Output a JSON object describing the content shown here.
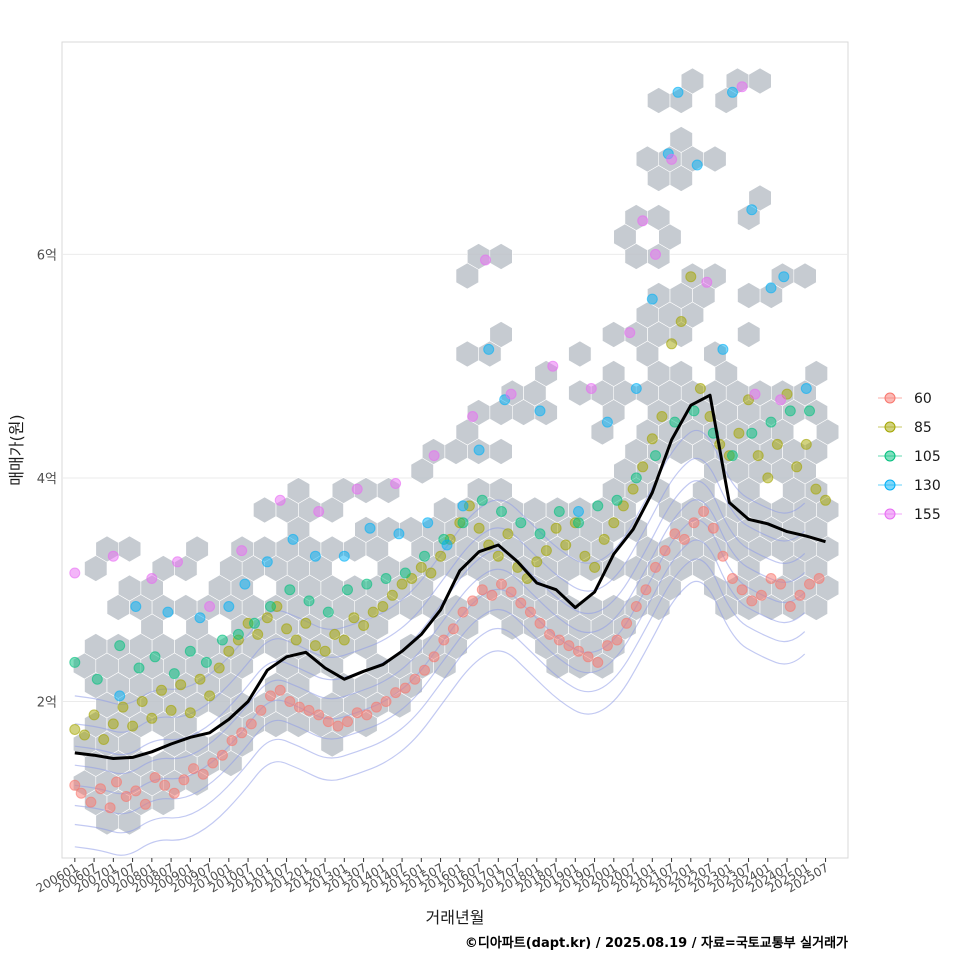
{
  "chart_data": {
    "type": "scatter",
    "xlabel": "거래년월",
    "ylabel": "매매가(원)",
    "caption": "©디아파트(dapt.kr) / 2025.08.19 / 자료=국토교통부 실거래가",
    "x_tick_labels": [
      "200601",
      "200607",
      "200701",
      "200707",
      "200801",
      "200807",
      "200901",
      "200907",
      "201001",
      "201007",
      "201101",
      "201107",
      "201201",
      "201207",
      "201301",
      "201307",
      "201401",
      "201407",
      "201501",
      "201507",
      "201601",
      "201607",
      "201701",
      "201707",
      "201801",
      "201807",
      "201901",
      "201907",
      "202001",
      "202007",
      "202101",
      "202107",
      "202201",
      "202207",
      "202301",
      "202307",
      "202401",
      "202407",
      "202501",
      "202507"
    ],
    "y_ticks": [
      {
        "value": 2.0,
        "label": "2억"
      },
      {
        "value": 4.0,
        "label": "4억"
      },
      {
        "value": 6.0,
        "label": "6억"
      }
    ],
    "xlim": [
      "2005-09",
      "2026-02"
    ],
    "ylim": [
      0.6,
      7.9
    ],
    "y_unit": "억",
    "grid": true,
    "legend_position": "right",
    "legend": [
      {
        "label": "60",
        "color": "#F8766D"
      },
      {
        "label": "85",
        "color": "#A3A500"
      },
      {
        "label": "105",
        "color": "#00BF7D"
      },
      {
        "label": "130",
        "color": "#00B0F6"
      },
      {
        "label": "155",
        "color": "#E76BF3"
      }
    ],
    "layers": [
      "hexbin density",
      "scatter points by size group",
      "2D density contours",
      "median price trend line"
    ],
    "trend_line": {
      "x": [
        "2006-01",
        "2006-07",
        "2007-01",
        "2007-07",
        "2008-01",
        "2008-07",
        "2009-01",
        "2009-07",
        "2010-01",
        "2010-07",
        "2011-01",
        "2011-07",
        "2012-01",
        "2012-07",
        "2013-01",
        "2013-07",
        "2014-01",
        "2014-07",
        "2015-01",
        "2015-07",
        "2016-01",
        "2016-07",
        "2017-01",
        "2017-07",
        "2018-01",
        "2018-07",
        "2019-01",
        "2019-07",
        "2020-01",
        "2020-07",
        "2021-01",
        "2021-07",
        "2022-01",
        "2022-07",
        "2023-01",
        "2023-07",
        "2024-01",
        "2024-07",
        "2025-01",
        "2025-07"
      ],
      "y": [
        1.54,
        1.52,
        1.49,
        1.5,
        1.55,
        1.62,
        1.68,
        1.72,
        1.84,
        2.0,
        2.28,
        2.4,
        2.44,
        2.3,
        2.2,
        2.27,
        2.33,
        2.45,
        2.6,
        2.82,
        3.17,
        3.34,
        3.4,
        3.25,
        3.06,
        3.0,
        2.84,
        2.98,
        3.32,
        3.54,
        3.87,
        4.34,
        4.65,
        4.74,
        3.78,
        3.63,
        3.59,
        3.52,
        3.48,
        3.43
      ]
    },
    "series": [
      {
        "name": "60",
        "points": [
          [
            "2006-01",
            1.25
          ],
          [
            "2006-03",
            1.18
          ],
          [
            "2006-06",
            1.1
          ],
          [
            "2006-09",
            1.22
          ],
          [
            "2006-12",
            1.05
          ],
          [
            "2007-02",
            1.28
          ],
          [
            "2007-05",
            1.15
          ],
          [
            "2007-08",
            1.2
          ],
          [
            "2007-11",
            1.08
          ],
          [
            "2008-02",
            1.32
          ],
          [
            "2008-05",
            1.25
          ],
          [
            "2008-08",
            1.18
          ],
          [
            "2008-11",
            1.3
          ],
          [
            "2009-02",
            1.4
          ],
          [
            "2009-05",
            1.35
          ],
          [
            "2009-08",
            1.45
          ],
          [
            "2009-11",
            1.52
          ],
          [
            "2010-02",
            1.65
          ],
          [
            "2010-05",
            1.72
          ],
          [
            "2010-08",
            1.8
          ],
          [
            "2010-11",
            1.92
          ],
          [
            "2011-02",
            2.05
          ],
          [
            "2011-05",
            2.1
          ],
          [
            "2011-08",
            2.0
          ],
          [
            "2011-11",
            1.95
          ],
          [
            "2012-02",
            1.92
          ],
          [
            "2012-05",
            1.88
          ],
          [
            "2012-08",
            1.82
          ],
          [
            "2012-11",
            1.78
          ],
          [
            "2013-02",
            1.82
          ],
          [
            "2013-05",
            1.9
          ],
          [
            "2013-08",
            1.88
          ],
          [
            "2013-11",
            1.95
          ],
          [
            "2014-02",
            2.0
          ],
          [
            "2014-05",
            2.08
          ],
          [
            "2014-08",
            2.12
          ],
          [
            "2014-11",
            2.2
          ],
          [
            "2015-02",
            2.28
          ],
          [
            "2015-05",
            2.4
          ],
          [
            "2015-08",
            2.55
          ],
          [
            "2015-11",
            2.65
          ],
          [
            "2016-02",
            2.8
          ],
          [
            "2016-05",
            2.9
          ],
          [
            "2016-08",
            3.0
          ],
          [
            "2016-11",
            2.95
          ],
          [
            "2017-02",
            3.05
          ],
          [
            "2017-05",
            2.98
          ],
          [
            "2017-08",
            2.88
          ],
          [
            "2017-11",
            2.8
          ],
          [
            "2018-02",
            2.7
          ],
          [
            "2018-05",
            2.6
          ],
          [
            "2018-08",
            2.55
          ],
          [
            "2018-11",
            2.5
          ],
          [
            "2019-02",
            2.45
          ],
          [
            "2019-05",
            2.4
          ],
          [
            "2019-08",
            2.35
          ],
          [
            "2019-11",
            2.5
          ],
          [
            "2020-02",
            2.55
          ],
          [
            "2020-05",
            2.7
          ],
          [
            "2020-08",
            2.85
          ],
          [
            "2020-11",
            3.0
          ],
          [
            "2021-02",
            3.2
          ],
          [
            "2021-05",
            3.35
          ],
          [
            "2021-08",
            3.5
          ],
          [
            "2021-11",
            3.45
          ],
          [
            "2022-02",
            3.6
          ],
          [
            "2022-05",
            3.7
          ],
          [
            "2022-08",
            3.55
          ],
          [
            "2022-11",
            3.3
          ],
          [
            "2023-02",
            3.1
          ],
          [
            "2023-05",
            3.0
          ],
          [
            "2023-08",
            2.9
          ],
          [
            "2023-11",
            2.95
          ],
          [
            "2024-02",
            3.1
          ],
          [
            "2024-05",
            3.05
          ],
          [
            "2024-08",
            2.85
          ],
          [
            "2024-11",
            2.95
          ],
          [
            "2025-02",
            3.05
          ],
          [
            "2025-05",
            3.1
          ]
        ]
      },
      {
        "name": "85",
        "points": [
          [
            "2006-01",
            1.75
          ],
          [
            "2006-04",
            1.7
          ],
          [
            "2006-07",
            1.88
          ],
          [
            "2006-10",
            1.66
          ],
          [
            "2007-01",
            1.8
          ],
          [
            "2007-04",
            1.95
          ],
          [
            "2007-07",
            1.78
          ],
          [
            "2007-10",
            2.0
          ],
          [
            "2008-01",
            1.85
          ],
          [
            "2008-04",
            2.1
          ],
          [
            "2008-07",
            1.92
          ],
          [
            "2008-10",
            2.15
          ],
          [
            "2009-01",
            1.9
          ],
          [
            "2009-04",
            2.2
          ],
          [
            "2009-07",
            2.05
          ],
          [
            "2009-10",
            2.3
          ],
          [
            "2010-01",
            2.45
          ],
          [
            "2010-04",
            2.55
          ],
          [
            "2010-07",
            2.7
          ],
          [
            "2010-10",
            2.6
          ],
          [
            "2011-01",
            2.75
          ],
          [
            "2011-04",
            2.85
          ],
          [
            "2011-07",
            2.65
          ],
          [
            "2011-10",
            2.55
          ],
          [
            "2012-01",
            2.7
          ],
          [
            "2012-04",
            2.5
          ],
          [
            "2012-07",
            2.45
          ],
          [
            "2012-10",
            2.6
          ],
          [
            "2013-01",
            2.55
          ],
          [
            "2013-04",
            2.75
          ],
          [
            "2013-07",
            2.68
          ],
          [
            "2013-10",
            2.8
          ],
          [
            "2014-01",
            2.85
          ],
          [
            "2014-04",
            2.95
          ],
          [
            "2014-07",
            3.05
          ],
          [
            "2014-10",
            3.1
          ],
          [
            "2015-01",
            3.2
          ],
          [
            "2015-04",
            3.15
          ],
          [
            "2015-07",
            3.3
          ],
          [
            "2015-10",
            3.45
          ],
          [
            "2016-01",
            3.6
          ],
          [
            "2016-04",
            3.75
          ],
          [
            "2016-07",
            3.55
          ],
          [
            "2016-10",
            3.4
          ],
          [
            "2017-01",
            3.3
          ],
          [
            "2017-04",
            3.5
          ],
          [
            "2017-07",
            3.2
          ],
          [
            "2017-10",
            3.1
          ],
          [
            "2018-01",
            3.25
          ],
          [
            "2018-04",
            3.35
          ],
          [
            "2018-07",
            3.55
          ],
          [
            "2018-10",
            3.4
          ],
          [
            "2019-01",
            3.6
          ],
          [
            "2019-04",
            3.3
          ],
          [
            "2019-07",
            3.2
          ],
          [
            "2019-10",
            3.45
          ],
          [
            "2020-01",
            3.6
          ],
          [
            "2020-04",
            3.75
          ],
          [
            "2020-07",
            3.9
          ],
          [
            "2020-10",
            4.1
          ],
          [
            "2021-01",
            4.35
          ],
          [
            "2021-04",
            4.55
          ],
          [
            "2021-07",
            5.2
          ],
          [
            "2021-10",
            5.4
          ],
          [
            "2022-01",
            5.8
          ],
          [
            "2022-04",
            4.8
          ],
          [
            "2022-07",
            4.55
          ],
          [
            "2022-10",
            4.3
          ],
          [
            "2023-01",
            4.2
          ],
          [
            "2023-04",
            4.4
          ],
          [
            "2023-07",
            4.7
          ],
          [
            "2023-10",
            4.2
          ],
          [
            "2024-01",
            4.0
          ],
          [
            "2024-04",
            4.3
          ],
          [
            "2024-07",
            4.75
          ],
          [
            "2024-10",
            4.1
          ],
          [
            "2025-01",
            4.3
          ],
          [
            "2025-04",
            3.9
          ],
          [
            "2025-07",
            3.8
          ]
        ]
      },
      {
        "name": "105",
        "points": [
          [
            "2006-01",
            2.35
          ],
          [
            "2006-08",
            2.2
          ],
          [
            "2007-03",
            2.5
          ],
          [
            "2007-09",
            2.3
          ],
          [
            "2008-02",
            2.4
          ],
          [
            "2008-08",
            2.25
          ],
          [
            "2009-01",
            2.45
          ],
          [
            "2009-06",
            2.35
          ],
          [
            "2009-11",
            2.55
          ],
          [
            "2010-04",
            2.6
          ],
          [
            "2010-09",
            2.7
          ],
          [
            "2011-02",
            2.85
          ],
          [
            "2011-08",
            3.0
          ],
          [
            "2012-02",
            2.9
          ],
          [
            "2012-08",
            2.8
          ],
          [
            "2013-02",
            3.0
          ],
          [
            "2013-08",
            3.05
          ],
          [
            "2014-02",
            3.1
          ],
          [
            "2014-08",
            3.15
          ],
          [
            "2015-02",
            3.3
          ],
          [
            "2015-08",
            3.45
          ],
          [
            "2016-02",
            3.6
          ],
          [
            "2016-08",
            3.8
          ],
          [
            "2017-02",
            3.7
          ],
          [
            "2017-08",
            3.6
          ],
          [
            "2018-02",
            3.5
          ],
          [
            "2018-08",
            3.7
          ],
          [
            "2019-02",
            3.6
          ],
          [
            "2019-08",
            3.75
          ],
          [
            "2020-02",
            3.8
          ],
          [
            "2020-08",
            4.0
          ],
          [
            "2021-02",
            4.2
          ],
          [
            "2021-08",
            4.5
          ],
          [
            "2022-02",
            4.6
          ],
          [
            "2022-08",
            4.4
          ],
          [
            "2023-02",
            4.2
          ],
          [
            "2023-08",
            4.4
          ],
          [
            "2024-02",
            4.5
          ],
          [
            "2024-08",
            4.6
          ],
          [
            "2025-02",
            4.6
          ]
        ]
      },
      {
        "name": "130",
        "points": [
          [
            "2007-03",
            2.05
          ],
          [
            "2007-08",
            2.85
          ],
          [
            "2008-06",
            2.8
          ],
          [
            "2009-04",
            2.75
          ],
          [
            "2010-01",
            2.85
          ],
          [
            "2010-06",
            3.05
          ],
          [
            "2011-01",
            3.25
          ],
          [
            "2011-09",
            3.45
          ],
          [
            "2012-04",
            3.3
          ],
          [
            "2013-01",
            3.3
          ],
          [
            "2013-09",
            3.55
          ],
          [
            "2014-06",
            3.5
          ],
          [
            "2015-03",
            3.6
          ],
          [
            "2015-09",
            3.4
          ],
          [
            "2016-02",
            3.75
          ],
          [
            "2016-07",
            4.25
          ],
          [
            "2016-10",
            5.15
          ],
          [
            "2017-03",
            4.7
          ],
          [
            "2018-02",
            4.6
          ],
          [
            "2019-02",
            3.7
          ],
          [
            "2019-11",
            4.5
          ],
          [
            "2020-08",
            4.8
          ],
          [
            "2021-01",
            5.6
          ],
          [
            "2021-06",
            6.9
          ],
          [
            "2021-09",
            7.45
          ],
          [
            "2022-03",
            6.8
          ],
          [
            "2022-11",
            5.15
          ],
          [
            "2023-02",
            7.45
          ],
          [
            "2023-08",
            6.4
          ],
          [
            "2024-02",
            5.7
          ],
          [
            "2024-06",
            5.8
          ],
          [
            "2025-01",
            4.8
          ]
        ]
      },
      {
        "name": "155",
        "points": [
          [
            "2006-01",
            3.15
          ],
          [
            "2007-01",
            3.3
          ],
          [
            "2008-01",
            3.1
          ],
          [
            "2008-09",
            3.25
          ],
          [
            "2009-07",
            2.85
          ],
          [
            "2010-05",
            3.35
          ],
          [
            "2011-05",
            3.8
          ],
          [
            "2012-05",
            3.7
          ],
          [
            "2013-05",
            3.9
          ],
          [
            "2014-05",
            3.95
          ],
          [
            "2015-05",
            4.2
          ],
          [
            "2016-05",
            4.55
          ],
          [
            "2016-09",
            5.95
          ],
          [
            "2017-05",
            4.75
          ],
          [
            "2018-06",
            5.0
          ],
          [
            "2019-06",
            4.8
          ],
          [
            "2020-06",
            5.3
          ],
          [
            "2020-10",
            6.3
          ],
          [
            "2021-02",
            6.0
          ],
          [
            "2021-07",
            6.85
          ],
          [
            "2022-06",
            5.75
          ],
          [
            "2023-05",
            7.5
          ],
          [
            "2023-09",
            4.75
          ],
          [
            "2024-05",
            4.7
          ]
        ]
      }
    ]
  }
}
